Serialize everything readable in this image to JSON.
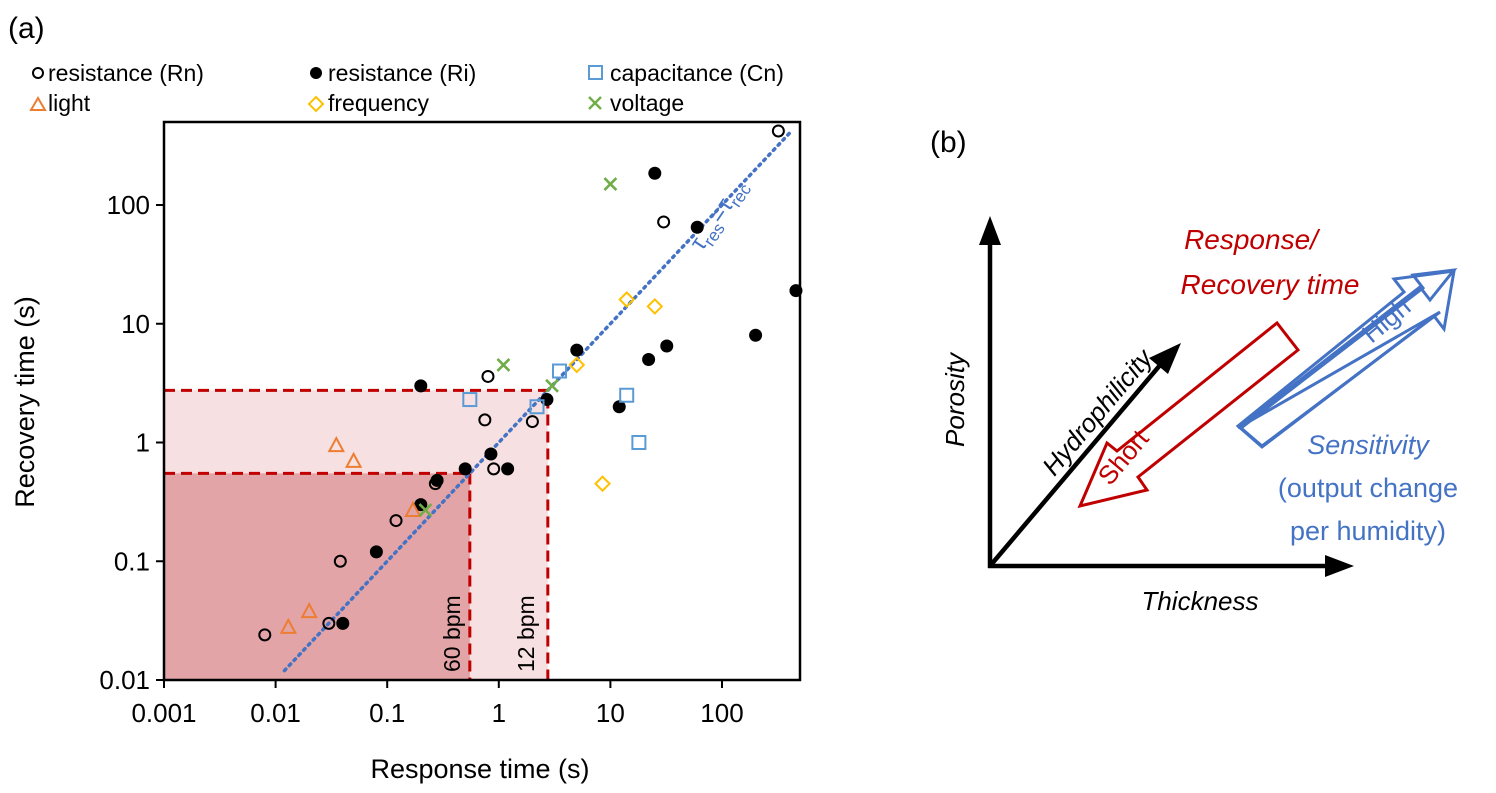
{
  "chart_data": [
    {
      "panel": "(a)",
      "type": "scatter",
      "title": "",
      "xlabel": "Response time (s)",
      "ylabel": "Recovery time (s)",
      "xscale": "log",
      "yscale": "log",
      "xlim": [
        0.001,
        500
      ],
      "ylim": [
        0.01,
        500
      ],
      "x_ticks": [
        "0.001",
        "0.01",
        "0.1",
        "1",
        "10",
        "100"
      ],
      "y_ticks": [
        "0.01",
        "0.1",
        "1",
        "10",
        "100"
      ],
      "grid": false,
      "legend_position": "top",
      "series": [
        {
          "name": "resistance (Rn)",
          "marker": "open-circle",
          "color": "#000000",
          "points": [
            [
              0.008,
              0.024
            ],
            [
              0.03,
              0.03
            ],
            [
              0.038,
              0.1
            ],
            [
              0.12,
              0.22
            ],
            [
              0.27,
              0.45
            ],
            [
              0.75,
              1.55
            ],
            [
              0.8,
              3.6
            ],
            [
              0.9,
              0.6
            ],
            [
              2.0,
              1.5
            ],
            [
              30,
              72
            ],
            [
              320,
              420
            ]
          ]
        },
        {
          "name": "resistance (Ri)",
          "marker": "filled-circle",
          "color": "#000000",
          "points": [
            [
              0.04,
              0.03
            ],
            [
              0.08,
              0.12
            ],
            [
              0.2,
              0.3
            ],
            [
              0.2,
              3.0
            ],
            [
              0.28,
              0.48
            ],
            [
              0.5,
              0.6
            ],
            [
              0.85,
              0.8
            ],
            [
              1.2,
              0.6
            ],
            [
              2.7,
              2.3
            ],
            [
              5.0,
              6.0
            ],
            [
              12,
              2.0
            ],
            [
              22,
              5.0
            ],
            [
              25,
              185
            ],
            [
              32,
              6.5
            ],
            [
              60,
              65
            ],
            [
              200,
              8.0
            ],
            [
              460,
              19
            ]
          ]
        },
        {
          "name": "capacitance (Cn)",
          "marker": "open-square",
          "color": "#5B9BD5",
          "points": [
            [
              0.55,
              2.3
            ],
            [
              2.2,
              2.0
            ],
            [
              3.5,
              4.0
            ],
            [
              14,
              2.5
            ],
            [
              18,
              1.0
            ]
          ]
        },
        {
          "name": "light",
          "marker": "open-triangle",
          "color": "#ED7D31",
          "points": [
            [
              0.013,
              0.028
            ],
            [
              0.02,
              0.038
            ],
            [
              0.035,
              0.95
            ],
            [
              0.05,
              0.7
            ],
            [
              0.17,
              0.27
            ]
          ]
        },
        {
          "name": "frequency",
          "marker": "open-diamond",
          "color": "#FFC000",
          "points": [
            [
              5.0,
              4.5
            ],
            [
              8.5,
              0.45
            ],
            [
              14,
              16
            ],
            [
              25,
              14
            ]
          ]
        },
        {
          "name": "voltage",
          "marker": "x",
          "color": "#70AD47",
          "points": [
            [
              0.22,
              0.27
            ],
            [
              1.1,
              4.5
            ],
            [
              3.0,
              3.0
            ],
            [
              10,
              150
            ]
          ]
        }
      ],
      "reference_line": {
        "label_main": "τ",
        "sub_res": "res",
        "equals": "=",
        "sub_rec": "rec",
        "from": [
          0.012,
          0.012
        ],
        "to": [
          420,
          420
        ],
        "color": "#4472C4"
      },
      "shaded_regions": [
        {
          "label": "60 bpm",
          "x_max": 0.55,
          "y_max": 0.55,
          "fill": "#E2A4A6",
          "edge_color": "#C00000"
        },
        {
          "label": "12 bpm",
          "x_max": 2.75,
          "y_max": 2.75,
          "fill": "#F7E0E1",
          "edge_color": "#C00000"
        }
      ]
    }
  ],
  "panels": {
    "a_label": "(a)",
    "b_label": "(b)"
  },
  "diagram": {
    "axis_vertical": "Porosity",
    "axis_horizontal": "Thickness",
    "axis_diagonal": "Hydrophilicity",
    "red_title_line1": "Response/",
    "red_title_line2": "Recovery time",
    "red_arrow_label": "Short",
    "blue_arrow_label": "High",
    "blue_title": "Sensitivity",
    "blue_sub_line1": "(output change",
    "blue_sub_line2": "per humidity)",
    "red_color": "#C00000",
    "blue_color": "#4472C4"
  }
}
